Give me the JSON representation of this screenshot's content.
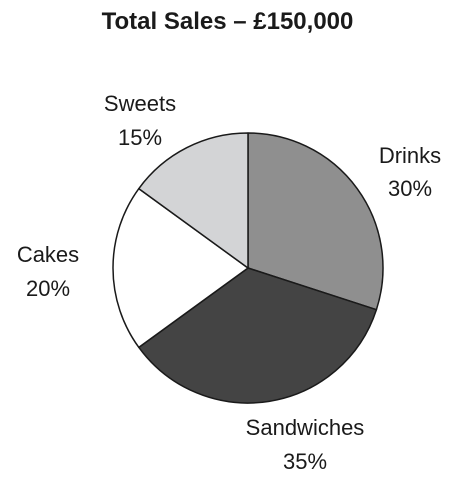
{
  "chart_data": {
    "type": "pie",
    "title": "Total Sales – £150,000",
    "slices": [
      {
        "label": "Drinks",
        "percent_label": "30%",
        "value": 30,
        "color": "#8f8f8f"
      },
      {
        "label": "Sandwiches",
        "percent_label": "35%",
        "value": 35,
        "color": "#444444"
      },
      {
        "label": "Cakes",
        "percent_label": "20%",
        "value": 20,
        "color": "#ffffff"
      },
      {
        "label": "Sweets",
        "percent_label": "15%",
        "value": 15,
        "color": "#d3d4d6"
      }
    ],
    "start_angle": "12 o'clock",
    "direction": "clockwise",
    "outline_color": "#1a1a1a"
  }
}
